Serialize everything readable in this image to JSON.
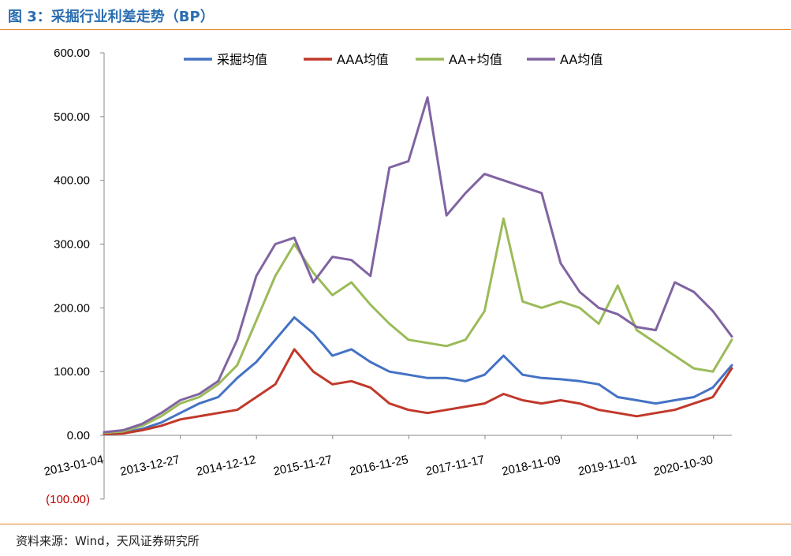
{
  "header": {
    "title": "图 3：采掘行业利差走势（BP）"
  },
  "footer": {
    "source": "资料来源：Wind，天风证券研究所"
  },
  "colors": {
    "accent_rule": "#e8852b",
    "title": "#2a6db0"
  },
  "chart_data": {
    "type": "line",
    "title": "",
    "xlabel": "",
    "ylabel": "",
    "ylim": [
      -100,
      600
    ],
    "y_ticks": [
      -100,
      0,
      100,
      200,
      300,
      400,
      500,
      600
    ],
    "y_tick_labels": [
      "(100.00)",
      "0.00",
      "100.00",
      "200.00",
      "300.00",
      "400.00",
      "500.00",
      "600.00"
    ],
    "x_ticks": [
      "2013-01-04",
      "2013-12-27",
      "2014-12-12",
      "2015-11-27",
      "2016-11-25",
      "2017-11-17",
      "2018-11-09",
      "2019-11-01",
      "2020-10-30"
    ],
    "grid": false,
    "legend_position": "top",
    "x": [
      "2013-01",
      "2013-06",
      "2013-12",
      "2014-06",
      "2014-12",
      "2015-03",
      "2015-08",
      "2015-11",
      "2016-01",
      "2016-04",
      "2016-06",
      "2016-09",
      "2016-11",
      "2017-01",
      "2017-04",
      "2017-06",
      "2017-09",
      "2017-11",
      "2017-12",
      "2018-02",
      "2018-05",
      "2018-07",
      "2018-09",
      "2018-11",
      "2019-01",
      "2019-04",
      "2019-07",
      "2019-09",
      "2019-11",
      "2020-01",
      "2020-04",
      "2020-07",
      "2020-10",
      "2021-01"
    ],
    "series": [
      {
        "name": "采掘均值",
        "color": "#4472c4",
        "values": [
          3,
          4,
          10,
          20,
          35,
          50,
          60,
          90,
          115,
          150,
          185,
          160,
          125,
          135,
          115,
          100,
          95,
          90,
          90,
          85,
          95,
          125,
          95,
          90,
          88,
          85,
          80,
          60,
          55,
          50,
          55,
          60,
          75,
          110
        ]
      },
      {
        "name": "AAA均值",
        "color": "#c0392b",
        "values": [
          2,
          3,
          8,
          15,
          25,
          30,
          35,
          40,
          60,
          80,
          135,
          100,
          80,
          85,
          75,
          50,
          40,
          35,
          40,
          45,
          50,
          65,
          55,
          50,
          55,
          50,
          40,
          35,
          30,
          35,
          40,
          50,
          60,
          105
        ]
      },
      {
        "name": "AA+均值",
        "color": "#9bbb59",
        "values": [
          4,
          6,
          15,
          30,
          50,
          60,
          80,
          110,
          180,
          250,
          300,
          255,
          220,
          240,
          205,
          175,
          150,
          145,
          140,
          150,
          195,
          340,
          210,
          200,
          210,
          200,
          175,
          235,
          165,
          145,
          125,
          105,
          100,
          150
        ]
      },
      {
        "name": "AA均值",
        "color": "#8064a2",
        "values": [
          5,
          8,
          18,
          35,
          55,
          65,
          85,
          150,
          250,
          300,
          310,
          240,
          280,
          275,
          250,
          420,
          430,
          530,
          345,
          380,
          410,
          400,
          390,
          380,
          270,
          225,
          200,
          190,
          170,
          165,
          240,
          225,
          195,
          155
        ]
      }
    ]
  }
}
